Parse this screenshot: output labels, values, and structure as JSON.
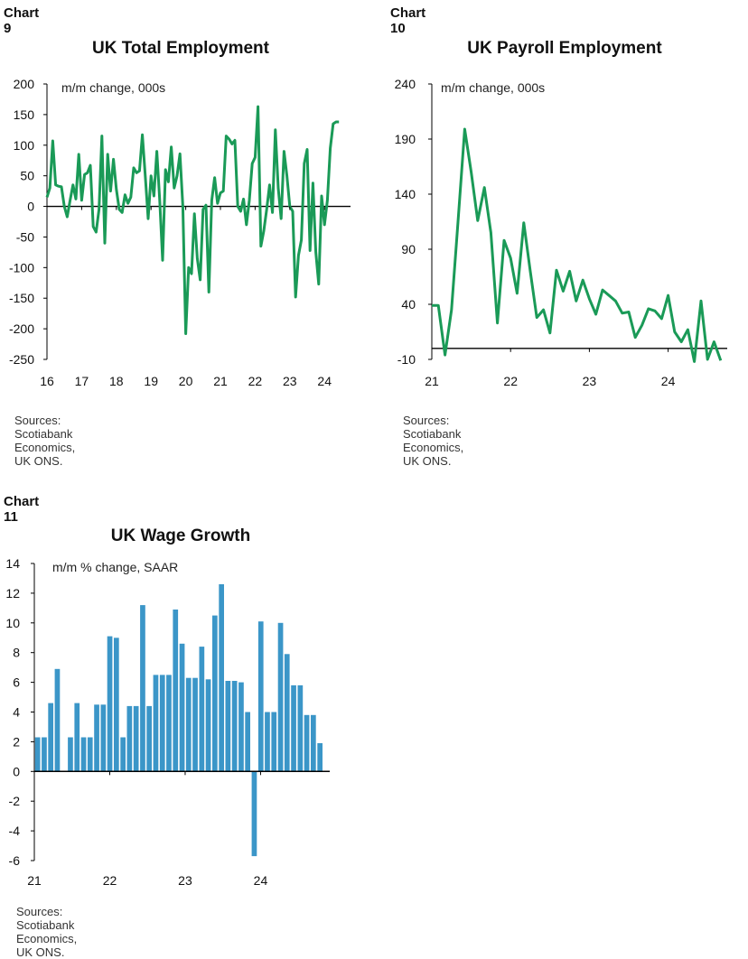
{
  "chart_data": [
    {
      "id": "chart9",
      "type": "line",
      "chart_number": "Chart 9",
      "title": "UK Total Employment",
      "ylabel": "m/m change, 000s",
      "source": "Sources: Scotiabank Economics, UK ONS.",
      "ylim": [
        -250,
        200
      ],
      "yticks": [
        200,
        150,
        100,
        50,
        0,
        -50,
        -100,
        -150,
        -200,
        -250
      ],
      "ytick_labels": [
        "200",
        "150",
        "100",
        "50",
        "0",
        "-50",
        "-100",
        "-150",
        "-200",
        "-250"
      ],
      "xlim": [
        2016,
        2024.75
      ],
      "xticks": [
        2016,
        2017,
        2018,
        2019,
        2020,
        2021,
        2022,
        2023,
        2024
      ],
      "xtick_labels": [
        "16",
        "17",
        "18",
        "19",
        "20",
        "21",
        "22",
        "23",
        "24"
      ],
      "color": "#1a9a57",
      "series": [
        {
          "x": [
            2016.0,
            2016.083,
            2016.167,
            2016.25,
            2016.333,
            2016.417,
            2016.5,
            2016.583,
            2016.667,
            2016.75,
            2016.833,
            2016.917,
            2017.0,
            2017.083,
            2017.167,
            2017.25,
            2017.333,
            2017.417,
            2017.5,
            2017.583,
            2017.667,
            2017.75,
            2017.833,
            2017.917,
            2018.0,
            2018.083,
            2018.167,
            2018.25,
            2018.333,
            2018.417,
            2018.5,
            2018.583,
            2018.667,
            2018.75,
            2018.833,
            2018.917,
            2019.0,
            2019.083,
            2019.167,
            2019.25,
            2019.333,
            2019.417,
            2019.5,
            2019.583,
            2019.667,
            2019.75,
            2019.833,
            2019.917,
            2020.0,
            2020.083,
            2020.167,
            2020.25,
            2020.333,
            2020.417,
            2020.5,
            2020.583,
            2020.667,
            2020.75,
            2020.833,
            2020.917,
            2021.0,
            2021.083,
            2021.167,
            2021.25,
            2021.333,
            2021.417,
            2021.5,
            2021.583,
            2021.667,
            2021.75,
            2021.833,
            2021.917,
            2022.0,
            2022.083,
            2022.167,
            2022.25,
            2022.333,
            2022.417,
            2022.5,
            2022.583,
            2022.667,
            2022.75,
            2022.833,
            2022.917,
            2023.0,
            2023.083,
            2023.167,
            2023.25,
            2023.333,
            2023.417,
            2023.5,
            2023.583,
            2023.667,
            2023.75,
            2023.833,
            2023.917,
            2024.0,
            2024.083,
            2024.167,
            2024.25,
            2024.333,
            2024.417
          ],
          "y": [
            15,
            30,
            107,
            35,
            33,
            32,
            0,
            -17,
            10,
            35,
            12,
            85,
            10,
            52,
            55,
            67,
            -33,
            -42,
            -5,
            115,
            -60,
            85,
            25,
            77,
            28,
            -5,
            -10,
            19,
            5,
            15,
            63,
            55,
            58,
            117,
            50,
            -20,
            50,
            17,
            90,
            10,
            -88,
            60,
            40,
            97,
            30,
            50,
            86,
            0,
            -208,
            -100,
            -110,
            -12,
            -85,
            -120,
            -5,
            2,
            -140,
            10,
            47,
            5,
            22,
            25,
            115,
            110,
            102,
            108,
            0,
            -8,
            12,
            -30,
            10,
            70,
            80,
            163,
            -65,
            -40,
            -5,
            35,
            -10,
            125,
            30,
            -20,
            90,
            50,
            0,
            -8,
            -148,
            -80,
            -55,
            70,
            93,
            -72,
            38,
            -75,
            -127,
            17,
            -30,
            10,
            95,
            135,
            138,
            138
          ]
        }
      ]
    },
    {
      "id": "chart10",
      "type": "line",
      "chart_number": "Chart 10",
      "title": "UK Payroll Employment",
      "ylabel": "m/m change, 000s",
      "source": "Sources: Scotiabank Economics, UK ONS.",
      "ylim": [
        -10,
        240
      ],
      "yticks": [
        240,
        190,
        140,
        90,
        40,
        -10
      ],
      "ytick_labels": [
        "240",
        "190",
        "140",
        "90",
        "40",
        "-10"
      ],
      "xlim": [
        2021,
        2024.75
      ],
      "xticks": [
        2021,
        2022,
        2023,
        2024
      ],
      "xtick_labels": [
        "21",
        "22",
        "23",
        "24"
      ],
      "color": "#1a9a57",
      "series": [
        {
          "x": [
            2021.0,
            2021.083,
            2021.167,
            2021.25,
            2021.333,
            2021.417,
            2021.5,
            2021.583,
            2021.667,
            2021.75,
            2021.833,
            2021.917,
            2022.0,
            2022.083,
            2022.167,
            2022.25,
            2022.333,
            2022.417,
            2022.5,
            2022.583,
            2022.667,
            2022.75,
            2022.833,
            2022.917,
            2023.0,
            2023.083,
            2023.167,
            2023.25,
            2023.333,
            2023.417,
            2023.5,
            2023.583,
            2023.667,
            2023.75,
            2023.833,
            2023.917,
            2024.0,
            2024.083,
            2024.167,
            2024.25,
            2024.333,
            2024.417,
            2024.5,
            2024.583,
            2024.667
          ],
          "y": [
            39,
            39,
            -6,
            35,
            115,
            199,
            160,
            116,
            146,
            105,
            23,
            98,
            82,
            50,
            114,
            70,
            28,
            35,
            14,
            71,
            52,
            70,
            43,
            62,
            45,
            31,
            53,
            48,
            43,
            32,
            33,
            10,
            21,
            36,
            34,
            27,
            48,
            15,
            6,
            17,
            -12,
            43,
            -10,
            6,
            -11
          ]
        }
      ]
    },
    {
      "id": "chart11",
      "type": "bar",
      "chart_number": "Chart 11",
      "title": "UK Wage Growth",
      "ylabel": "m/m % change, SAAR",
      "source": "Sources: Scotiabank Economics, UK ONS.",
      "ylim": [
        -6,
        14
      ],
      "yticks": [
        14,
        12,
        10,
        8,
        6,
        4,
        2,
        0,
        -2,
        -4,
        -6
      ],
      "ytick_labels": [
        "14",
        "12",
        "10",
        "8",
        "6",
        "4",
        "2",
        "0",
        "-2",
        "-4",
        "-6"
      ],
      "xlim": [
        2021,
        2024.917
      ],
      "xticks": [
        2021,
        2022,
        2023,
        2024
      ],
      "xtick_labels": [
        "21",
        "22",
        "23",
        "24"
      ],
      "color": "#3b96c8",
      "series": [
        {
          "x": [
            2021.0,
            2021.083,
            2021.167,
            2021.25,
            2021.333,
            2021.417,
            2021.5,
            2021.583,
            2021.667,
            2021.75,
            2021.833,
            2021.917,
            2022.0,
            2022.083,
            2022.167,
            2022.25,
            2022.333,
            2022.417,
            2022.5,
            2022.583,
            2022.667,
            2022.75,
            2022.833,
            2022.917,
            2023.0,
            2023.083,
            2023.167,
            2023.25,
            2023.333,
            2023.417,
            2023.5,
            2023.583,
            2023.667,
            2023.75,
            2023.833,
            2023.917,
            2024.0,
            2024.083,
            2024.167,
            2024.25,
            2024.333,
            2024.417,
            2024.5,
            2024.583,
            2024.667
          ],
          "y": [
            2.3,
            2.3,
            4.6,
            6.9,
            0,
            2.3,
            4.6,
            2.3,
            2.3,
            4.5,
            4.5,
            9.1,
            9.0,
            2.3,
            4.4,
            4.4,
            11.2,
            4.4,
            6.5,
            6.5,
            6.5,
            10.9,
            8.6,
            6.3,
            6.3,
            8.4,
            6.2,
            10.5,
            12.6,
            6.1,
            6.1,
            6.0,
            4.0,
            -5.7,
            10.1,
            4.0,
            4.0,
            10.0,
            7.9,
            5.8,
            5.8,
            3.8,
            3.8,
            1.9,
            0
          ]
        }
      ]
    }
  ]
}
